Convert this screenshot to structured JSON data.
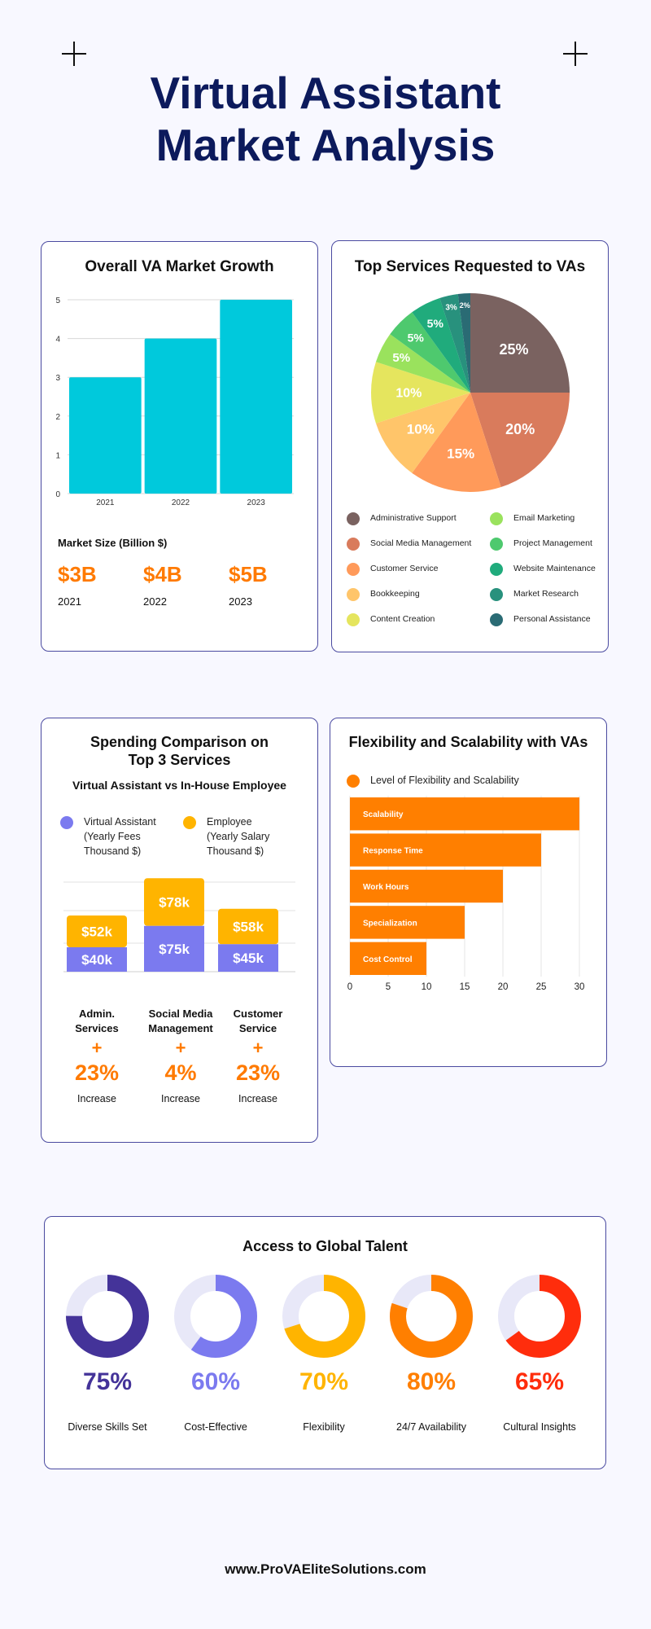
{
  "header": {
    "title_line1": "Virtual Assistant",
    "title_line2": "Market Analysis"
  },
  "growth": {
    "title": "Overall VA Market Growth",
    "size_label": "Market Size (Billion $)",
    "stats": [
      {
        "value": "$3B",
        "year": "2021"
      },
      {
        "value": "$4B",
        "year": "2022"
      },
      {
        "value": "$5B",
        "year": "2023"
      }
    ]
  },
  "services": {
    "title": "Top Services Requested to VAs"
  },
  "spending": {
    "title_line1": "Spending Comparison on",
    "title_line2": "Top 3 Services",
    "subtitle": "Virtual Assistant vs In-House Employee",
    "legend_va": [
      "Virtual Assistant",
      "(Yearly Fees",
      "Thousand $)"
    ],
    "legend_emp": [
      "Employee",
      "(Yearly Salary",
      "Thousand $)"
    ],
    "services": [
      {
        "name1": "Admin.",
        "name2": "Services",
        "plus": "+",
        "pct": "23%",
        "note": "Increase"
      },
      {
        "name1": "Social Media",
        "name2": "Management",
        "plus": "+",
        "pct": "4%",
        "note": "Increase"
      },
      {
        "name1": "Customer",
        "name2": "Service",
        "plus": "+",
        "pct": "23%",
        "note": "Increase"
      }
    ]
  },
  "flex": {
    "title": "Flexibility and Scalability with VAs"
  },
  "talent": {
    "title": "Access to Global Talent",
    "items": [
      {
        "pct": "75%",
        "label": "Diverse Skills Set",
        "value": 0.75,
        "color": "#443399"
      },
      {
        "pct": "60%",
        "label": "Cost-Effective",
        "value": 0.6,
        "color": "#7b7aef"
      },
      {
        "pct": "70%",
        "label": "Flexibility",
        "value": 0.7,
        "color": "#ffb400"
      },
      {
        "pct": "80%",
        "label": "24/7 Availability",
        "value": 0.8,
        "color": "#ff7f00"
      },
      {
        "pct": "65%",
        "label": "Cultural Insights",
        "value": 0.65,
        "color": "#ff2d0c"
      }
    ]
  },
  "footer": {
    "url": "www.ProVAEliteSolutions.com"
  },
  "chart_data": [
    {
      "type": "bar",
      "title": "Overall VA Market Growth",
      "categories": [
        "2021",
        "2022",
        "2023"
      ],
      "values": [
        3,
        4,
        5
      ],
      "ylim": [
        0,
        5
      ],
      "yticks": [
        "0",
        "1",
        "2",
        "3",
        "4",
        "5"
      ],
      "color": "#00c9dc",
      "grid": true
    },
    {
      "type": "pie",
      "title": "Top Services Requested to VAs",
      "labels": [
        "Administrative Support",
        "Social Media Management",
        "Customer Service",
        "Bookkeeping",
        "Content Creation",
        "Email Marketing",
        "Project Management",
        "Website Maintenance",
        "Market Research",
        "Personal Assistance"
      ],
      "values": [
        25,
        20,
        15,
        10,
        10,
        5,
        5,
        5,
        3,
        2
      ],
      "value_labels": [
        "25%",
        "20%",
        "15%",
        "10%",
        "10%",
        "5%",
        "5%",
        "5%",
        "3%",
        "2%"
      ],
      "colors": [
        "#7a6260",
        "#d97b5c",
        "#ff9a5a",
        "#ffc56a",
        "#e5e55e",
        "#9ae25d",
        "#4ec96e",
        "#20ab7c",
        "#28917d",
        "#2a6b74"
      ]
    },
    {
      "type": "bar",
      "title": "Spending Comparison on Top 3 Services",
      "categories": [
        "Admin. Services",
        "Social Media Management",
        "Customer Service"
      ],
      "series": [
        {
          "name": "Virtual Assistant",
          "values": [
            40,
            75,
            45
          ],
          "labels": [
            "$40k",
            "$75k",
            "$45k"
          ],
          "color": "#7b7aef"
        },
        {
          "name": "Employee",
          "values": [
            52,
            78,
            58
          ],
          "labels": [
            "$52k",
            "$78k",
            "$58k"
          ],
          "color": "#ffb400"
        }
      ],
      "stacked": true
    },
    {
      "type": "bar",
      "orientation": "horizontal",
      "title": "Flexibility and Scalability with VAs",
      "series_name": "Level of Flexibility and Scalability",
      "categories": [
        "Scalability",
        "Response Time",
        "Work Hours",
        "Specialization",
        "Cost Control"
      ],
      "values": [
        30,
        25,
        20,
        15,
        10
      ],
      "xlim": [
        0,
        30
      ],
      "xticks": [
        "0",
        "5",
        "10",
        "15",
        "20",
        "25",
        "30"
      ],
      "color": "#ff7f00"
    }
  ]
}
